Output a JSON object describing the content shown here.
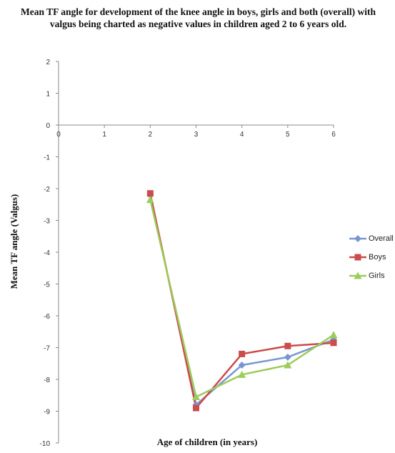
{
  "chart_data": {
    "type": "line",
    "title": "Mean TF angle for development of the knee angle in boys, girls and both (overall) with valgus being charted as negative values in children aged 2 to 6 years old.",
    "xlabel": "Age of children (in years)",
    "ylabel": "Mean TF angle (Valgus)",
    "xlim": [
      0,
      6
    ],
    "ylim": [
      -10,
      2
    ],
    "x_ticks": [
      "0",
      "1",
      "2",
      "3",
      "4",
      "5",
      "6"
    ],
    "y_ticks": [
      "2",
      "1",
      "0",
      "-1",
      "-2",
      "-3",
      "-4",
      "-5",
      "-6",
      "-7",
      "-8",
      "-9",
      "-10"
    ],
    "grid": false,
    "legend_position": "right",
    "x": [
      2,
      3,
      4,
      5,
      6
    ],
    "series": [
      {
        "name": "Overall",
        "values": [
          -2.2,
          -8.8,
          -7.55,
          -7.3,
          -6.75
        ],
        "color": "#7a96d1",
        "marker": "diamond"
      },
      {
        "name": "Boys",
        "values": [
          -2.15,
          -8.9,
          -7.2,
          -6.95,
          -6.85
        ],
        "color": "#cc4b4b",
        "marker": "square"
      },
      {
        "name": "Girls",
        "values": [
          -2.35,
          -8.55,
          -7.85,
          -7.55,
          -6.6
        ],
        "color": "#9ccc5a",
        "marker": "triangle"
      }
    ]
  }
}
